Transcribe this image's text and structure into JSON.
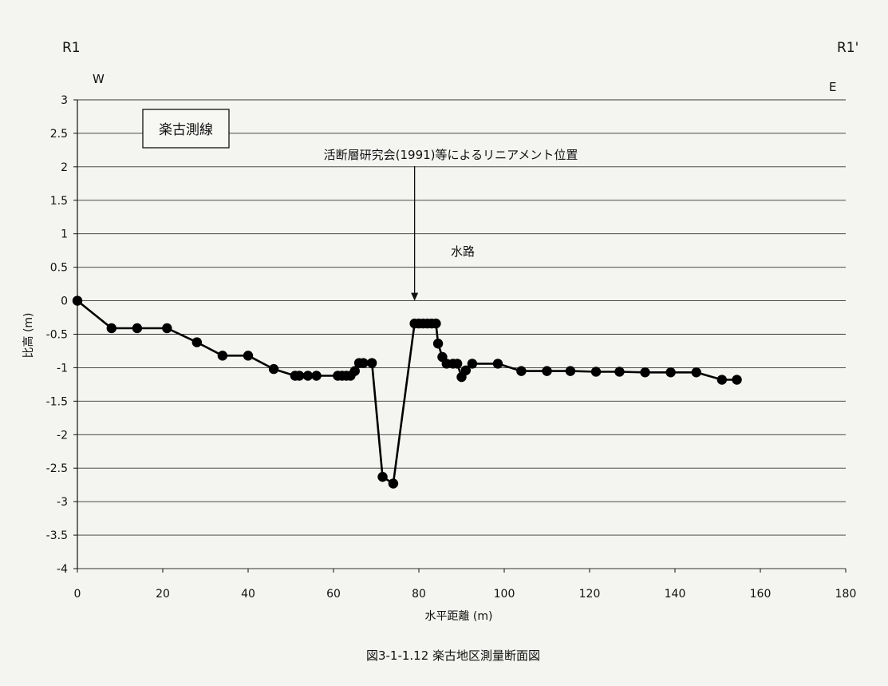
{
  "chart_data": {
    "type": "line",
    "title": "楽古測線",
    "caption": "図3-1-1.12 楽古地区測量断面図",
    "left_point": "R1",
    "right_point": "R1'",
    "left_direction": "W",
    "right_direction": "E",
    "xlabel": "水平距離 (m)",
    "ylabel": "比高 (m)",
    "xlim": [
      0,
      180
    ],
    "ylim": [
      -4,
      3
    ],
    "x_ticks": [
      0,
      20,
      40,
      60,
      80,
      100,
      120,
      140,
      160,
      180
    ],
    "y_ticks": [
      3,
      2.5,
      2,
      1.5,
      1,
      0.5,
      0,
      -0.5,
      -1,
      -1.5,
      -2,
      -2.5,
      -3,
      -3.5,
      -4
    ],
    "grid": "horizontal",
    "legend": "none",
    "annotations": [
      {
        "text": "活断層研究会(1991)等によるリニアメント位置",
        "x": 79,
        "arrow_to_y": 0
      },
      {
        "text": "水路",
        "x": 82,
        "y": 0.7
      }
    ],
    "series": [
      {
        "x": [
          0,
          8,
          14,
          21,
          28,
          34,
          40,
          46,
          51,
          52,
          54,
          56,
          61,
          62,
          63,
          64,
          65,
          66,
          67,
          69,
          71.5,
          74,
          79,
          80,
          81,
          82,
          83,
          84,
          84.5,
          85.5,
          86.5,
          88,
          89,
          90,
          91,
          92.5,
          98.5,
          104,
          110,
          115.5,
          121.5,
          127,
          133,
          139,
          145,
          151,
          154.5
        ],
        "y": [
          0,
          -0.41,
          -0.41,
          -0.41,
          -0.62,
          -0.82,
          -0.82,
          -1.02,
          -1.12,
          -1.12,
          -1.12,
          -1.12,
          -1.12,
          -1.12,
          -1.12,
          -1.12,
          -1.05,
          -0.93,
          -0.93,
          -0.93,
          -2.63,
          -2.73,
          -0.34,
          -0.34,
          -0.34,
          -0.34,
          -0.34,
          -0.34,
          -0.64,
          -0.84,
          -0.94,
          -0.94,
          -0.94,
          -1.14,
          -1.04,
          -0.94,
          -0.94,
          -1.05,
          -1.05,
          -1.05,
          -1.06,
          -1.06,
          -1.07,
          -1.07,
          -1.07,
          -1.18,
          -1.18
        ]
      }
    ]
  }
}
